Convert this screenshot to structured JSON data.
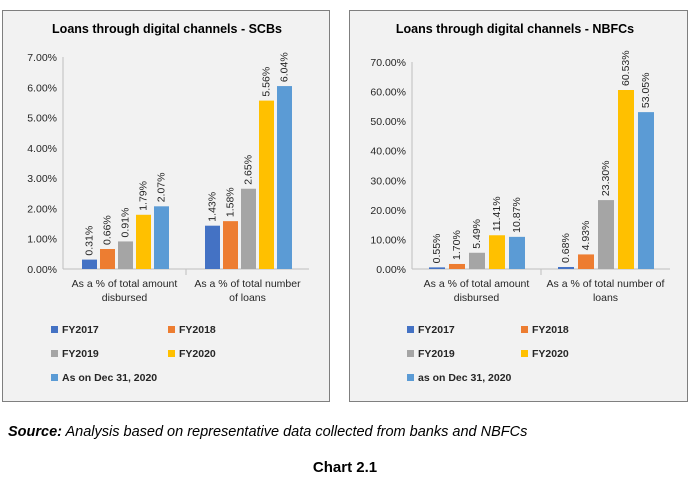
{
  "colors": {
    "FY2017": "#4472c4",
    "FY2018": "#ed7d31",
    "FY2019": "#a5a5a5",
    "FY2020": "#ffc000",
    "FY2021": "#5b9bd5"
  },
  "chart_data": [
    {
      "type": "bar",
      "title": "Loans through digital channels - SCBs",
      "categories": [
        "As a % of total amount disbursed",
        "As a % of total number of loans"
      ],
      "category_lines": [
        [
          "As a % of total amount",
          "disbursed"
        ],
        [
          "As a % of total number",
          "of loans"
        ]
      ],
      "series": [
        {
          "name": "FY2017",
          "values": [
            0.31,
            1.43
          ],
          "labels": [
            "0.31%",
            "1.43%"
          ]
        },
        {
          "name": "FY2018",
          "values": [
            0.66,
            1.58
          ],
          "labels": [
            "0.66%",
            "1.58%"
          ]
        },
        {
          "name": "FY2019",
          "values": [
            0.91,
            2.65
          ],
          "labels": [
            "0.91%",
            "2.65%"
          ]
        },
        {
          "name": "FY2020",
          "values": [
            1.79,
            5.56
          ],
          "labels": [
            "1.79%",
            "5.56%"
          ]
        },
        {
          "name": "As on Dec 31, 2020",
          "values": [
            2.07,
            6.04
          ],
          "labels": [
            "2.07%",
            "6.04%"
          ]
        }
      ],
      "yticks": [
        0,
        1,
        2,
        3,
        4,
        5,
        6,
        7
      ],
      "ytick_labels": [
        "0.00%",
        "1.00%",
        "2.00%",
        "3.00%",
        "4.00%",
        "5.00%",
        "6.00%",
        "7.00%"
      ],
      "ylim": [
        0,
        7
      ],
      "xlabel": "",
      "ylabel": "",
      "grid": false,
      "legend": "bottom"
    },
    {
      "type": "bar",
      "title": "Loans through digital channels - NBFCs",
      "categories": [
        "As a % of total amount disbursed",
        "As a % of total number of loans"
      ],
      "category_lines": [
        [
          "As a % of total amount",
          "disbursed"
        ],
        [
          "As a % of total number of",
          "loans"
        ]
      ],
      "series": [
        {
          "name": "FY2017",
          "values": [
            0.55,
            0.68
          ],
          "labels": [
            "0.55%",
            "0.68%"
          ]
        },
        {
          "name": "FY2018",
          "values": [
            1.7,
            4.93
          ],
          "labels": [
            "1.70%",
            "4.93%"
          ]
        },
        {
          "name": "FY2019",
          "values": [
            5.49,
            23.3
          ],
          "labels": [
            "5.49%",
            "23.30%"
          ]
        },
        {
          "name": "FY2020",
          "values": [
            11.41,
            60.53
          ],
          "labels": [
            "11.41%",
            "60.53%"
          ]
        },
        {
          "name": "as on Dec 31, 2020",
          "values": [
            10.87,
            53.05
          ],
          "labels": [
            "10.87%",
            "53.05%"
          ]
        }
      ],
      "yticks": [
        0,
        10,
        20,
        30,
        40,
        50,
        60,
        70
      ],
      "ytick_labels": [
        "0.00%",
        "10.00%",
        "20.00%",
        "30.00%",
        "40.00%",
        "50.00%",
        "60.00%",
        "70.00%"
      ],
      "ylim": [
        0,
        70
      ],
      "xlabel": "",
      "ylabel": "",
      "grid": false,
      "legend": "bottom"
    }
  ],
  "source": {
    "prefix": "Source:",
    "text": " Analysis based on representative data collected from banks and NBFCs"
  },
  "caption": "Chart 2.1"
}
